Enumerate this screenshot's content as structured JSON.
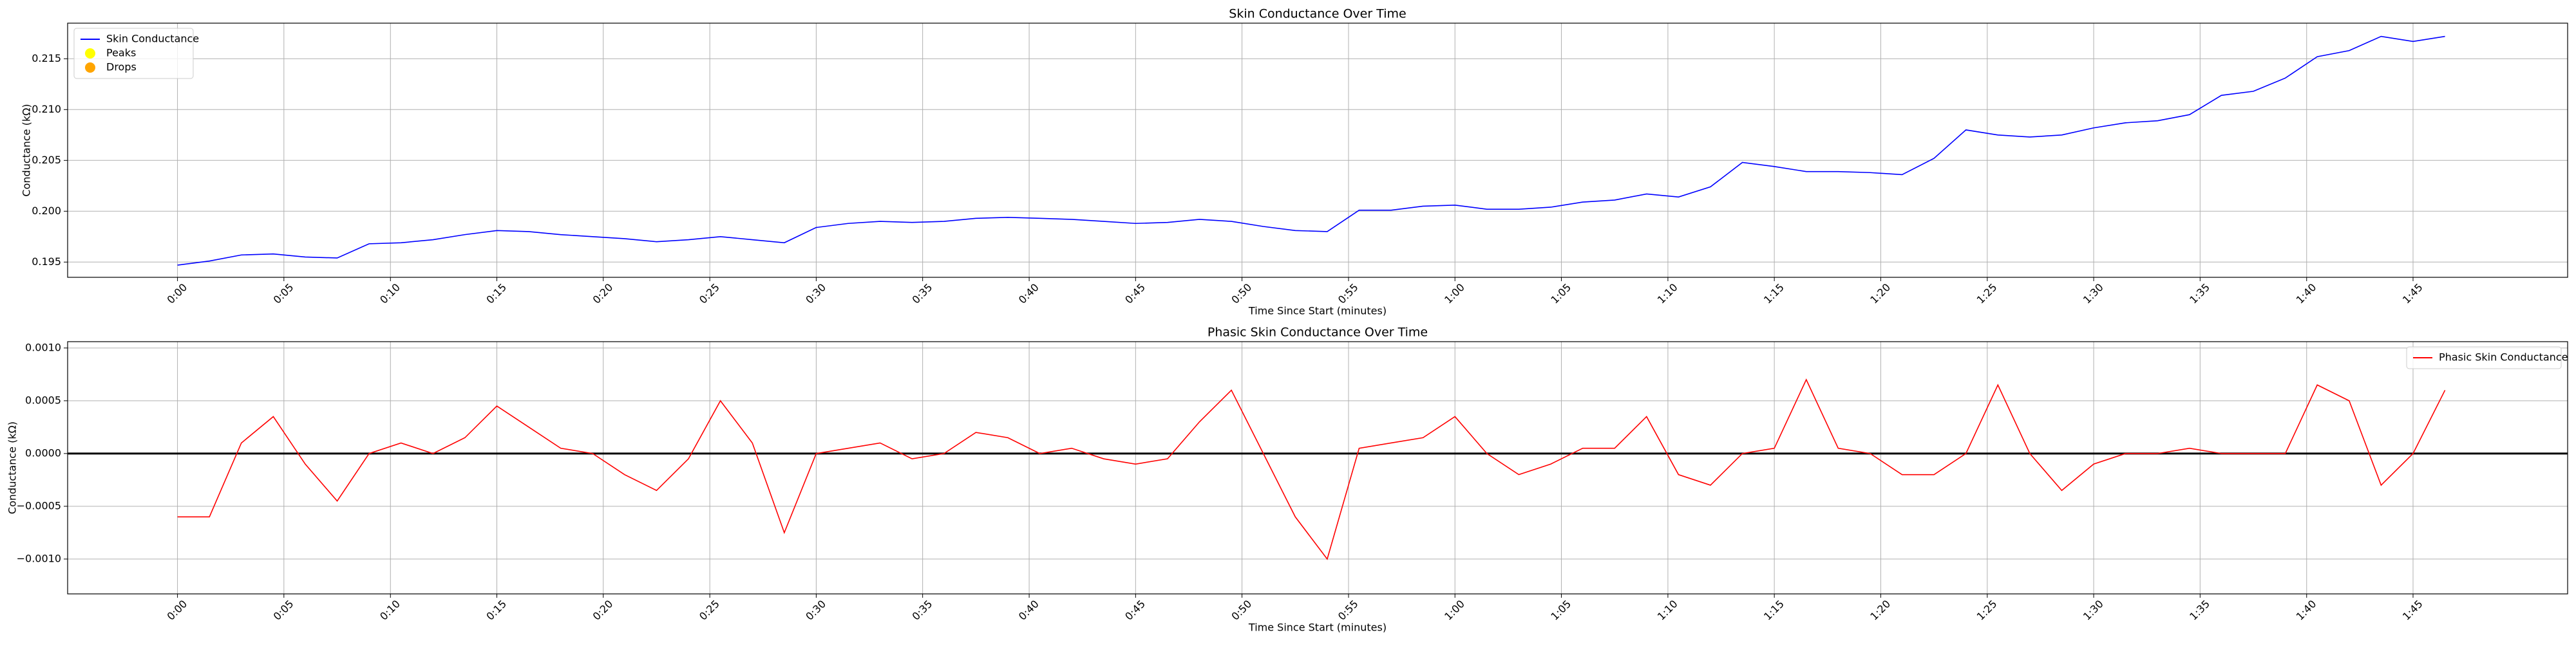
{
  "chart_data": [
    {
      "type": "line",
      "title": "Skin Conductance Over Time",
      "xlabel": "Time Since Start (minutes)",
      "ylabel": "Conductance (kΩ)",
      "x": [
        0,
        0.025,
        0.05,
        0.075,
        0.1,
        0.125,
        0.15,
        0.175,
        0.2,
        0.225,
        0.25,
        0.275,
        0.3,
        0.325,
        0.35,
        0.375,
        0.4,
        0.425,
        0.45,
        0.475,
        0.5,
        0.525,
        0.55,
        0.575,
        0.6,
        0.625,
        0.65,
        0.675,
        0.7,
        0.725,
        0.75,
        0.775,
        0.8,
        0.825,
        0.85,
        0.875,
        0.9,
        0.925,
        0.95,
        0.975,
        1,
        1.025,
        1.05,
        1.075,
        1.1,
        1.125,
        1.15,
        1.175,
        1.2,
        1.225,
        1.25,
        1.275,
        1.3,
        1.325,
        1.35,
        1.375,
        1.4,
        1.425,
        1.45,
        1.475,
        1.5,
        1.525,
        1.55,
        1.575,
        1.6,
        1.625,
        1.65,
        1.675,
        1.7,
        1.725,
        1.75,
        1.775
      ],
      "series": [
        {
          "name": "Skin Conductance",
          "color": "#0000ff",
          "values": [
            0.1947,
            0.1951,
            0.1957,
            0.1958,
            0.1955,
            0.1954,
            0.1968,
            0.1969,
            0.1972,
            0.1977,
            0.1981,
            0.198,
            0.1977,
            0.1975,
            0.1973,
            0.197,
            0.1972,
            0.1975,
            0.1972,
            0.1969,
            0.1984,
            0.1988,
            0.199,
            0.1989,
            0.199,
            0.1993,
            0.1994,
            0.1993,
            0.1992,
            0.199,
            0.1988,
            0.1989,
            0.1992,
            0.199,
            0.1985,
            0.1981,
            0.198,
            0.2001,
            0.2001,
            0.2005,
            0.2006,
            0.2002,
            0.2002,
            0.2004,
            0.2009,
            0.2011,
            0.2017,
            0.2014,
            0.2024,
            0.2048,
            0.2044,
            0.2039,
            0.2039,
            0.2038,
            0.2036,
            0.2052,
            0.208,
            0.2075,
            0.2073,
            0.2075,
            0.2082,
            0.2087,
            0.2089,
            0.2095,
            0.2114,
            0.2118,
            0.2131,
            0.2152,
            0.2158,
            0.2172,
            0.2167,
            0.2172
          ]
        }
      ],
      "legend_only": [
        {
          "name": "Peaks",
          "color": "#ffff00"
        },
        {
          "name": "Drops",
          "color": "#ffa500"
        }
      ],
      "legend": "upper left",
      "xlim": [
        -0.086,
        1.871
      ],
      "xticks": [
        {
          "value": 0,
          "label": "0:00"
        },
        {
          "value": 0.0833,
          "label": "0:05"
        },
        {
          "value": 0.1667,
          "label": "0:10"
        },
        {
          "value": 0.25,
          "label": "0:15"
        },
        {
          "value": 0.3333,
          "label": "0:20"
        },
        {
          "value": 0.4167,
          "label": "0:25"
        },
        {
          "value": 0.5,
          "label": "0:30"
        },
        {
          "value": 0.5833,
          "label": "0:35"
        },
        {
          "value": 0.6667,
          "label": "0:40"
        },
        {
          "value": 0.75,
          "label": "0:45"
        },
        {
          "value": 0.8333,
          "label": "0:50"
        },
        {
          "value": 0.9167,
          "label": "0:55"
        },
        {
          "value": 1,
          "label": "1:00"
        },
        {
          "value": 1.0833,
          "label": "1:05"
        },
        {
          "value": 1.1667,
          "label": "1:10"
        },
        {
          "value": 1.25,
          "label": "1:15"
        },
        {
          "value": 1.3333,
          "label": "1:20"
        },
        {
          "value": 1.4167,
          "label": "1:25"
        },
        {
          "value": 1.5,
          "label": "1:30"
        },
        {
          "value": 1.5833,
          "label": "1:35"
        },
        {
          "value": 1.6667,
          "label": "1:40"
        },
        {
          "value": 1.75,
          "label": "1:45"
        }
      ],
      "ylim": [
        0.1935,
        0.2185
      ],
      "yticks": [
        0.195,
        {
          "value": 0.2,
          "label": "0.200"
        },
        0.205,
        {
          "value": 0.21,
          "label": "0.210"
        },
        0.215
      ],
      "grid": true
    },
    {
      "type": "line",
      "title": "Phasic Skin Conductance Over Time",
      "xlabel": "Time Since Start (minutes)",
      "ylabel": "Conductance (kΩ)",
      "x": [
        0,
        0.025,
        0.05,
        0.075,
        0.1,
        0.125,
        0.15,
        0.175,
        0.2,
        0.225,
        0.25,
        0.275,
        0.3,
        0.325,
        0.35,
        0.375,
        0.4,
        0.425,
        0.45,
        0.475,
        0.5,
        0.525,
        0.55,
        0.575,
        0.6,
        0.625,
        0.65,
        0.675,
        0.7,
        0.725,
        0.75,
        0.775,
        0.8,
        0.825,
        0.85,
        0.875,
        0.9,
        0.925,
        0.95,
        0.975,
        1,
        1.025,
        1.05,
        1.075,
        1.1,
        1.125,
        1.15,
        1.175,
        1.2,
        1.225,
        1.25,
        1.275,
        1.3,
        1.325,
        1.35,
        1.375,
        1.4,
        1.425,
        1.45,
        1.475,
        1.5,
        1.525,
        1.55,
        1.575,
        1.6,
        1.625,
        1.65,
        1.675,
        1.7,
        1.725,
        1.75,
        1.775
      ],
      "series": [
        {
          "name": "Phasic Skin Conductance",
          "color": "#ff0000",
          "values": [
            -0.0006,
            -0.0006,
            0.0001,
            0.00035,
            -0.0001,
            -0.00045,
            0,
            0.0001,
            0,
            0.00015,
            0.00045,
            0.00025,
            5e-05,
            0,
            -0.0002,
            -0.00035,
            -5e-05,
            0.0005,
            0.0001,
            -0.00075,
            0,
            5e-05,
            0.0001,
            -5e-05,
            0,
            0.0002,
            0.00015,
            0,
            5e-05,
            -5e-05,
            -0.0001,
            -5e-05,
            0.0003,
            0.0006,
            0,
            -0.0006,
            -0.001,
            5e-05,
            0.0001,
            0.00015,
            0.00035,
            0,
            -0.0002,
            -0.0001,
            5e-05,
            5e-05,
            0.00035,
            -0.0002,
            -0.0003,
            0,
            5e-05,
            0.0007,
            5e-05,
            0,
            -0.0002,
            -0.0002,
            0,
            0.00065,
            0,
            -0.00035,
            -0.0001,
            0,
            0,
            5e-05,
            0,
            0,
            0,
            0.00065,
            0.0005,
            -0.0003,
            0,
            0.0006
          ]
        }
      ],
      "hline": {
        "y": 0,
        "color": "#000000"
      },
      "legend": "upper right",
      "xlim": [
        -0.086,
        1.871
      ],
      "xticks": [
        {
          "value": 0,
          "label": "0:00"
        },
        {
          "value": 0.0833,
          "label": "0:05"
        },
        {
          "value": 0.1667,
          "label": "0:10"
        },
        {
          "value": 0.25,
          "label": "0:15"
        },
        {
          "value": 0.3333,
          "label": "0:20"
        },
        {
          "value": 0.4167,
          "label": "0:25"
        },
        {
          "value": 0.5,
          "label": "0:30"
        },
        {
          "value": 0.5833,
          "label": "0:35"
        },
        {
          "value": 0.6667,
          "label": "0:40"
        },
        {
          "value": 0.75,
          "label": "0:45"
        },
        {
          "value": 0.8333,
          "label": "0:50"
        },
        {
          "value": 0.9167,
          "label": "0:55"
        },
        {
          "value": 1,
          "label": "1:00"
        },
        {
          "value": 1.0833,
          "label": "1:05"
        },
        {
          "value": 1.1667,
          "label": "1:10"
        },
        {
          "value": 1.25,
          "label": "1:15"
        },
        {
          "value": 1.3333,
          "label": "1:20"
        },
        {
          "value": 1.4167,
          "label": "1:25"
        },
        {
          "value": 1.5,
          "label": "1:30"
        },
        {
          "value": 1.5833,
          "label": "1:35"
        },
        {
          "value": 1.6667,
          "label": "1:40"
        },
        {
          "value": 1.75,
          "label": "1:45"
        }
      ],
      "ylim": [
        -0.00133,
        0.00106
      ],
      "yticks": [
        {
          "value": -0.001,
          "label": "−0.0010"
        },
        {
          "value": -0.0005,
          "label": "−0.0005"
        },
        {
          "value": 0,
          "label": "0.0000"
        },
        {
          "value": 0.0005,
          "label": "0.0005"
        },
        {
          "value": 0.001,
          "label": "0.0010"
        }
      ],
      "grid": true
    }
  ]
}
